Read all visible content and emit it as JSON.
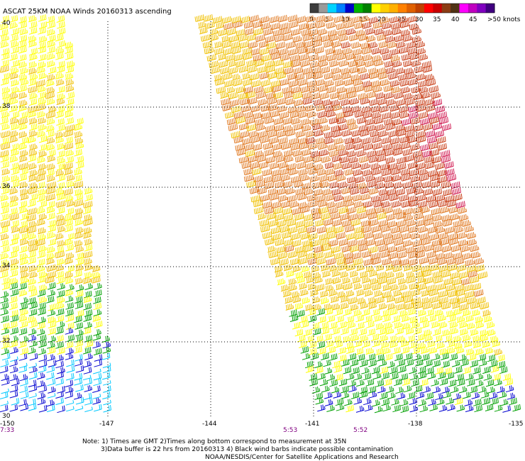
{
  "title": "ASCAT 25KM NOAA Winds 20160313 ascending",
  "legend": {
    "tick_labels": [
      "0",
      "5",
      "10",
      "15",
      "20",
      "25",
      "30",
      "35",
      "40",
      "45",
      ">50 knots"
    ],
    "colors": [
      "#3c3c3c",
      "#9a9a9a",
      "#00d4ff",
      "#0080ff",
      "#0000c8",
      "#00b400",
      "#008000",
      "#ffff00",
      "#ffd000",
      "#ffb000",
      "#ff8000",
      "#e06000",
      "#c04000",
      "#ff0000",
      "#c80000",
      "#8c3c14",
      "#503214",
      "#ff00ff",
      "#c000c0",
      "#8000c0",
      "#400080"
    ]
  },
  "map": {
    "lon_ticks": [
      "-150",
      "-147",
      "-144",
      "-141",
      "-138",
      "-135"
    ],
    "lat_ticks": [
      "40",
      "38",
      "36",
      "34",
      "32",
      "30"
    ],
    "lon_range": [
      -150,
      -135
    ],
    "lat_range": [
      30,
      40
    ],
    "gridlines": true
  },
  "pass_times": [
    "7:33",
    "5:53",
    "5:52"
  ],
  "notes": {
    "line1": "Note: 1) Times are GMT 2)Times along bottom correspond to measurement at 35N",
    "line2": "3)Data buffer is 22 hrs from 20160313 4) Black wind barbs indicate possible contamination",
    "line3": "NOAA/NESDIS/Center for Satellite Applications and Research"
  },
  "swaths": [
    {
      "name": "west-swath",
      "speed_bands_knots_north_to_south": [
        20,
        20,
        25,
        20,
        15,
        10
      ]
    },
    {
      "name": "east-swath",
      "speed_bands_knots_north_to_south": [
        30,
        35,
        30,
        25,
        20,
        15
      ]
    }
  ]
}
